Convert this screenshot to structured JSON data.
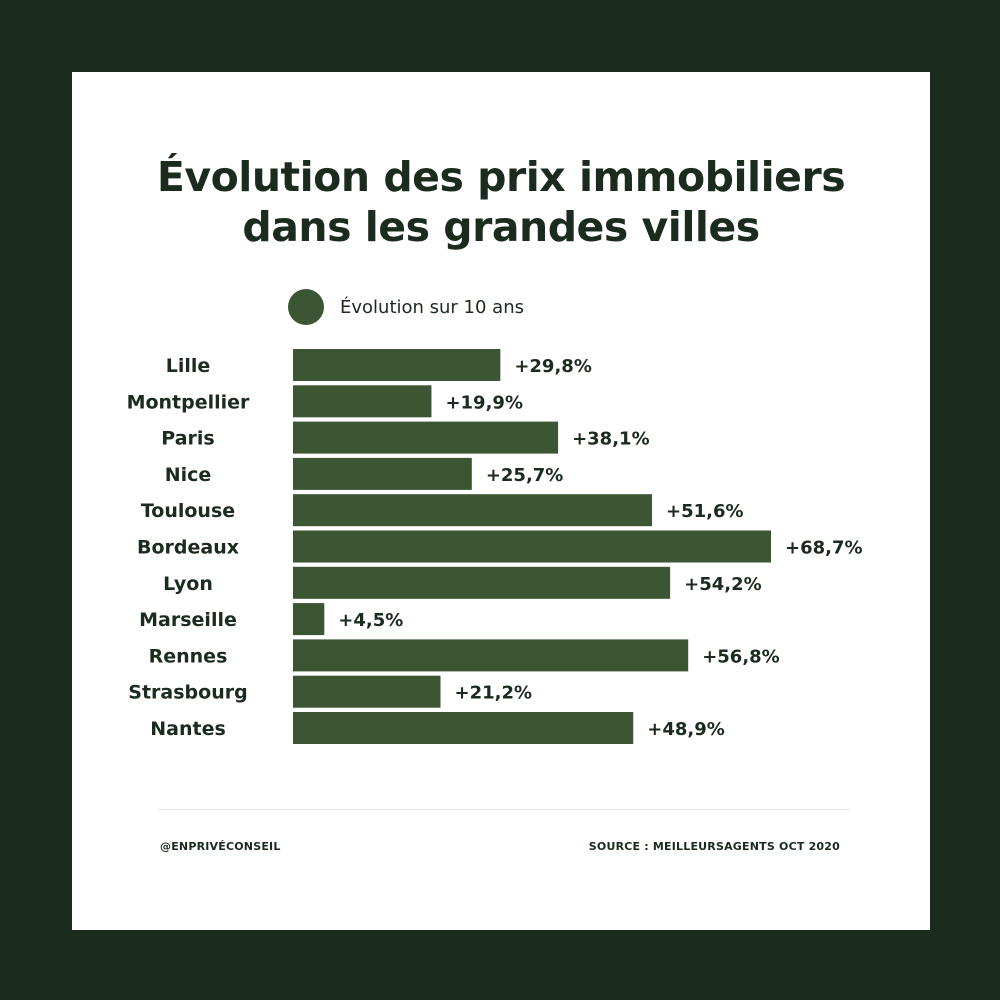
{
  "title": {
    "line1": "Évolution des prix immobiliers",
    "line2": "dans les grandes villes"
  },
  "legend": {
    "label": "Évolution sur 10 ans"
  },
  "colors": {
    "background": "#1b2b1d",
    "bar": "#3c5533",
    "text": "#1b2b1d"
  },
  "chart_data": {
    "type": "bar",
    "orientation": "horizontal",
    "categories": [
      "Lille",
      "Montpellier",
      "Paris",
      "Nice",
      "Toulouse",
      "Bordeaux",
      "Lyon",
      "Marseille",
      "Rennes",
      "Strasbourg",
      "Nantes"
    ],
    "series": [
      {
        "name": "Évolution sur 10 ans",
        "values": [
          29.8,
          19.9,
          38.1,
          25.7,
          51.6,
          68.7,
          54.2,
          4.5,
          56.8,
          21.2,
          48.9
        ],
        "labels": [
          "+29,8%",
          "+19,9%",
          "+38,1%",
          "+25,7%",
          "+51,6%",
          "+68,7%",
          "+54,2%",
          "+4,5%",
          "+56,8%",
          "+21,2%",
          "+48,9%"
        ]
      }
    ],
    "xlim": [
      0,
      68.7
    ],
    "grid": false,
    "legend_position": "top"
  },
  "footer": {
    "handle": "@ENPRIVÉCONSEIL",
    "source": "SOURCE : MEILLEURSAGENTS OCT 2020"
  }
}
